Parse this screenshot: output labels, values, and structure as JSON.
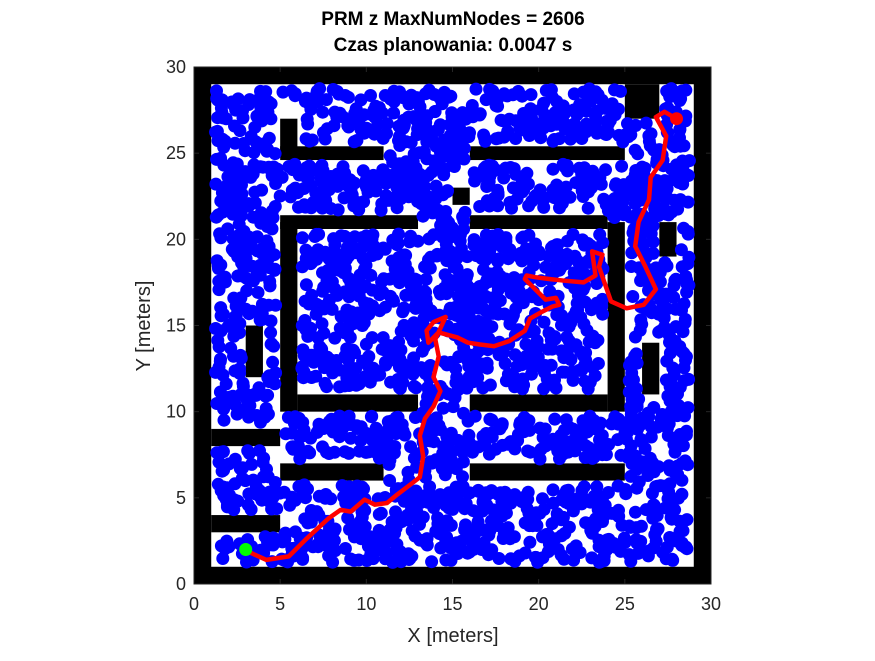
{
  "chart_data": {
    "type": "scatter",
    "title": [
      "PRM z MaxNumNodes = 2606",
      "Czas planowania: 0.0047 s"
    ],
    "xlabel": "X [meters]",
    "ylabel": "Y [meters]",
    "xlim": [
      0,
      30
    ],
    "ylim": [
      0,
      30
    ],
    "xticks": [
      "0",
      "5",
      "10",
      "15",
      "20",
      "25",
      "30"
    ],
    "yticks": [
      "0",
      "5",
      "10",
      "15",
      "20",
      "25",
      "30"
    ],
    "grid": false,
    "legend": "none",
    "colors": {
      "nodes": "#0000ff",
      "path": "#ff0000",
      "start": "#00ff00",
      "goal": "#ff0000",
      "obstacle": "#000000",
      "free": "#ffffff"
    },
    "map": {
      "walls": [
        {
          "x0": 0,
          "x1": 30,
          "y0": 0,
          "y1": 1
        },
        {
          "x0": 0,
          "x1": 30,
          "y0": 29,
          "y1": 30
        },
        {
          "x0": 0,
          "x1": 1,
          "y0": 0,
          "y1": 30
        },
        {
          "x0": 29,
          "x1": 30,
          "y0": 0,
          "y1": 30
        },
        {
          "x0": 5,
          "x1": 11,
          "y0": 24.6,
          "y1": 25.4
        },
        {
          "x0": 16,
          "x1": 25,
          "y0": 24.6,
          "y1": 25.4
        },
        {
          "x0": 5,
          "x1": 13,
          "y0": 20.6,
          "y1": 21.4
        },
        {
          "x0": 16,
          "x1": 24,
          "y0": 20.6,
          "y1": 21.4
        },
        {
          "x0": 5,
          "x1": 6,
          "y0": 10,
          "y1": 21
        },
        {
          "x0": 24,
          "x1": 25,
          "y0": 10,
          "y1": 21
        },
        {
          "x0": 6,
          "x1": 13,
          "y0": 10,
          "y1": 11
        },
        {
          "x0": 16,
          "x1": 24,
          "y0": 10,
          "y1": 11
        },
        {
          "x0": 5,
          "x1": 11,
          "y0": 6,
          "y1": 7
        },
        {
          "x0": 16,
          "x1": 25,
          "y0": 6,
          "y1": 7
        },
        {
          "x0": 1,
          "x1": 5,
          "y0": 3,
          "y1": 4
        },
        {
          "x0": 1,
          "x1": 5,
          "y0": 8,
          "y1": 9
        },
        {
          "x0": 26,
          "x1": 27,
          "y0": 11,
          "y1": 14
        },
        {
          "x0": 27,
          "x1": 28,
          "y0": 19,
          "y1": 21
        },
        {
          "x0": 25,
          "x1": 27,
          "y0": 27,
          "y1": 29
        },
        {
          "x0": 5,
          "x1": 6,
          "y0": 25,
          "y1": 27
        },
        {
          "x0": 15,
          "x1": 16,
          "y0": 22,
          "y1": 23
        },
        {
          "x0": 3,
          "x1": 4,
          "y0": 12,
          "y1": 15
        }
      ]
    },
    "nodes": {
      "count": 2606,
      "seed": 2606
    },
    "series": [
      {
        "name": "path",
        "x": [
          3.1,
          4.2,
          5.5,
          6.5,
          7.8,
          8.5,
          9.1,
          9.9,
          10.5,
          11.2,
          11.8,
          12.6,
          13.1,
          13.3,
          13.1,
          13.4,
          13.9,
          14.3,
          13.9,
          14.2,
          14.0,
          14.6,
          13.9,
          13.5,
          13.6,
          14.2,
          15.3,
          15.9,
          16.6,
          17.4,
          18.3,
          19.2,
          19.5,
          20.2,
          20.8,
          21.2,
          21.0,
          20.4,
          19.8,
          19.2,
          19.3,
          19.8,
          20.6,
          21.5,
          22.6,
          23.3,
          23.1,
          23.7,
          23.5,
          24.2,
          25.1,
          26.1,
          26.8,
          26.2,
          25.6,
          25.8,
          26.4,
          26.5,
          27.2,
          27.4,
          26.8,
          27.3,
          28.0
        ],
        "y": [
          1.9,
          1.4,
          1.6,
          2.6,
          3.8,
          4.3,
          4.2,
          4.9,
          4.6,
          4.7,
          5.2,
          5.8,
          6.2,
          7.4,
          8.6,
          9.6,
          10.3,
          11.2,
          12.0,
          13.2,
          14.2,
          15.5,
          15.2,
          14.7,
          14.0,
          14.6,
          14.3,
          14.0,
          13.9,
          13.8,
          14.1,
          14.7,
          15.4,
          15.8,
          16.1,
          16.2,
          16.6,
          16.5,
          17.1,
          17.7,
          17.9,
          17.8,
          17.7,
          17.6,
          17.5,
          17.9,
          19.3,
          19.1,
          18.4,
          16.4,
          16.0,
          16.2,
          17.1,
          18.4,
          19.6,
          21.0,
          22.3,
          23.6,
          24.6,
          26.0,
          27.1,
          27.4,
          27.0
        ]
      }
    ],
    "start": {
      "x": 3.0,
      "y": 2.0
    },
    "goal": {
      "x": 28.0,
      "y": 27.0
    }
  }
}
